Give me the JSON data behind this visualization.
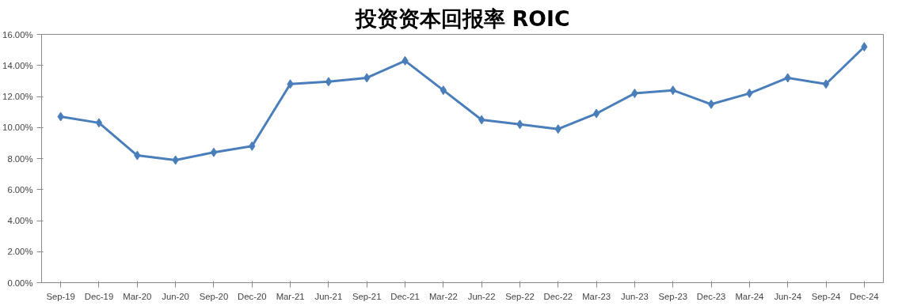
{
  "chart_data": {
    "type": "line",
    "title": "投资资本回报率 ROIC",
    "categories": [
      "Sep-19",
      "Dec-19",
      "Mar-20",
      "Jun-20",
      "Sep-20",
      "Dec-20",
      "Mar-21",
      "Jun-21",
      "Sep-21",
      "Dec-21",
      "Mar-22",
      "Jun-22",
      "Sep-22",
      "Dec-22",
      "Mar-23",
      "Jun-23",
      "Sep-23",
      "Dec-23",
      "Mar-24",
      "Jun-24",
      "Sep-24",
      "Dec-24"
    ],
    "series": [
      {
        "color": "#4a7ebb",
        "values": [
          10.7,
          10.3,
          8.2,
          7.9,
          8.4,
          8.8,
          12.8,
          12.95,
          13.2,
          14.3,
          12.4,
          10.5,
          10.2,
          9.9,
          10.9,
          12.2,
          12.4,
          11.5,
          12.2,
          13.2,
          12.8,
          15.2
        ]
      }
    ],
    "ylim": [
      0,
      16
    ],
    "yticks": [
      {
        "value": 0,
        "label": "0.00%"
      },
      {
        "value": 2,
        "label": "2.00%"
      },
      {
        "value": 4,
        "label": "4.00%"
      },
      {
        "value": 6,
        "label": "6.00%"
      },
      {
        "value": 8,
        "label": "8.00%"
      },
      {
        "value": 10,
        "label": "10.00%"
      },
      {
        "value": 12,
        "label": "12.00%"
      },
      {
        "value": 14,
        "label": "14.00%"
      },
      {
        "value": 16,
        "label": "16.00%"
      }
    ],
    "grid": false,
    "marker": "diamond",
    "line_style": "solid"
  }
}
